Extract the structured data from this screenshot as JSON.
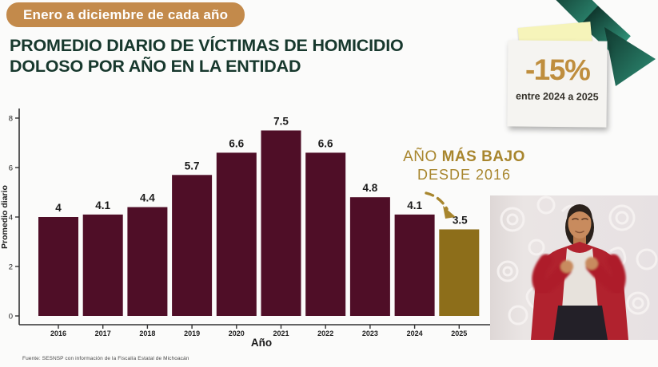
{
  "badge": {
    "label": "Enero a diciembre de cada año"
  },
  "title": {
    "line1": "PROMEDIO DIARIO DE VÍCTIMAS DE HOMICIDIO",
    "line2": "DOLOSO POR AÑO EN LA ENTIDAD"
  },
  "sticky_note": {
    "value": "-15%",
    "caption": "entre 2024 a 2025"
  },
  "annotation": {
    "prefix": "AÑO ",
    "emphasis": "MÁS BAJO",
    "line2": "DESDE 2016"
  },
  "footer": {
    "source": "Fuente: SESNSP con información de la Fiscalía Estatal de Michoacán"
  },
  "colors": {
    "badge_tan": "#c38a4b",
    "title_green": "#17382d",
    "bar_maroon": "#4f0e27",
    "bar_gold": "#8d6e1a",
    "accent_gold": "#a8862e",
    "note_gold": "#bf8e3e",
    "arrow_green_dark": "#10382e",
    "arrow_green_light": "#2f9077",
    "axis": "#333333",
    "value_label": "#1a1a1a"
  },
  "chart_data": {
    "type": "bar",
    "title": "Promedio diario de víctimas de homicidio doloso por año en la entidad",
    "categories": [
      "2016",
      "2017",
      "2018",
      "2019",
      "2020",
      "2021",
      "2022",
      "2023",
      "2024",
      "2025"
    ],
    "values": [
      4,
      4.1,
      4.4,
      5.7,
      6.6,
      7.5,
      6.6,
      4.8,
      4.1,
      3.5
    ],
    "value_labels": [
      "4",
      "4.1",
      "4.4",
      "5.7",
      "6.6",
      "7.5",
      "6.6",
      "4.8",
      "4.1",
      "3.5"
    ],
    "xlabel": "Año",
    "ylabel": "Promedio diario",
    "ylim": [
      0,
      8
    ],
    "yticks": [
      0,
      2,
      4,
      6,
      8
    ],
    "grid": false,
    "legend": false,
    "highlight": {
      "index": 9,
      "label": "AÑO MÁS BAJO DESDE 2016"
    }
  }
}
